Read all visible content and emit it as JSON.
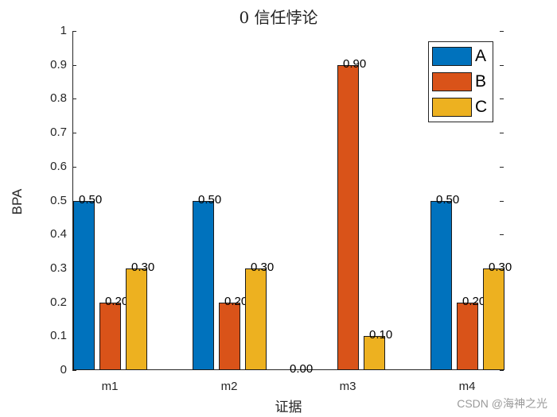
{
  "chart_data": {
    "type": "bar",
    "title": "0  信任悖论",
    "xlabel": "证据",
    "ylabel": "BPA",
    "categories": [
      "m1",
      "m2",
      "m3",
      "m4"
    ],
    "series": [
      {
        "name": "A",
        "color": "#0072BD",
        "values": [
          0.5,
          0.5,
          0.0,
          0.5
        ]
      },
      {
        "name": "B",
        "color": "#D95319",
        "values": [
          0.2,
          0.2,
          0.9,
          0.2
        ]
      },
      {
        "name": "C",
        "color": "#EDB120",
        "values": [
          0.3,
          0.3,
          0.1,
          0.3
        ]
      }
    ],
    "data_labels": [
      [
        "0.50",
        "0.20",
        "0.30"
      ],
      [
        "0.50",
        "0.20",
        "0.30"
      ],
      [
        "0.00",
        "0.90",
        "0.10"
      ],
      [
        "0.50",
        "0.20",
        "0.30"
      ]
    ],
    "ylim": [
      0,
      1
    ],
    "yticks": [
      "0",
      "0.1",
      "0.2",
      "0.3",
      "0.4",
      "0.5",
      "0.6",
      "0.7",
      "0.8",
      "0.9",
      "1"
    ],
    "legend_position": "upper right",
    "grid": false
  },
  "watermark": "CSDN @海神之光"
}
